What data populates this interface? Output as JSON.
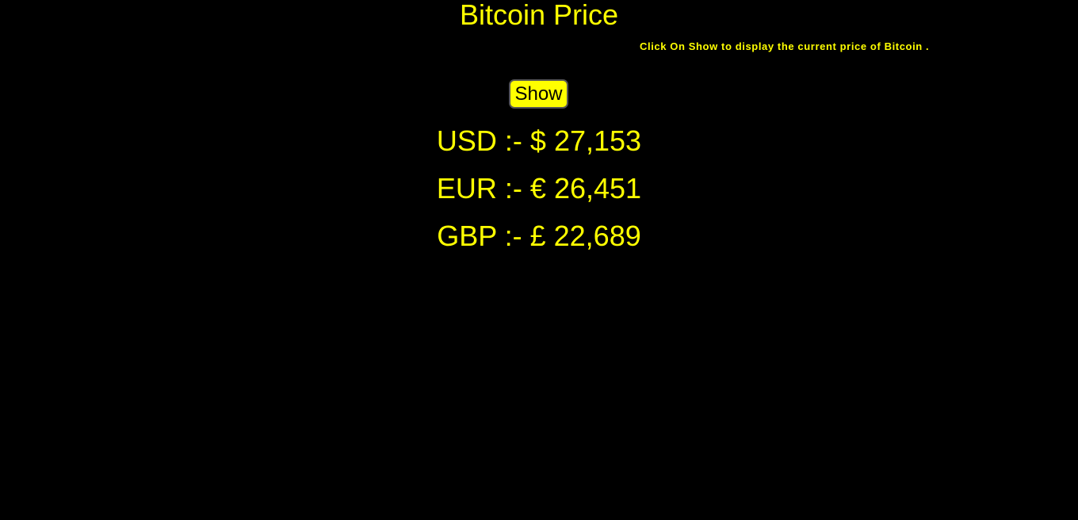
{
  "colors": {
    "background": "#000000",
    "accent": "#ffff00",
    "button_text": "#000000"
  },
  "header": {
    "title": "Bitcoin Price"
  },
  "instruction": {
    "text": "Click On Show to display the current price of Bitcoin ."
  },
  "controls": {
    "show_label": "Show"
  },
  "prices": [
    {
      "currency": "USD",
      "separator": ":-",
      "symbol": "$",
      "amount": "27,153",
      "display": "USD :- $ 27,153"
    },
    {
      "currency": "EUR",
      "separator": ":-",
      "symbol": "€",
      "amount": "26,451",
      "display": "EUR :- € 26,451"
    },
    {
      "currency": "GBP",
      "separator": ":-",
      "symbol": "£",
      "amount": "22,689",
      "display": "GBP :- £ 22,689"
    }
  ]
}
